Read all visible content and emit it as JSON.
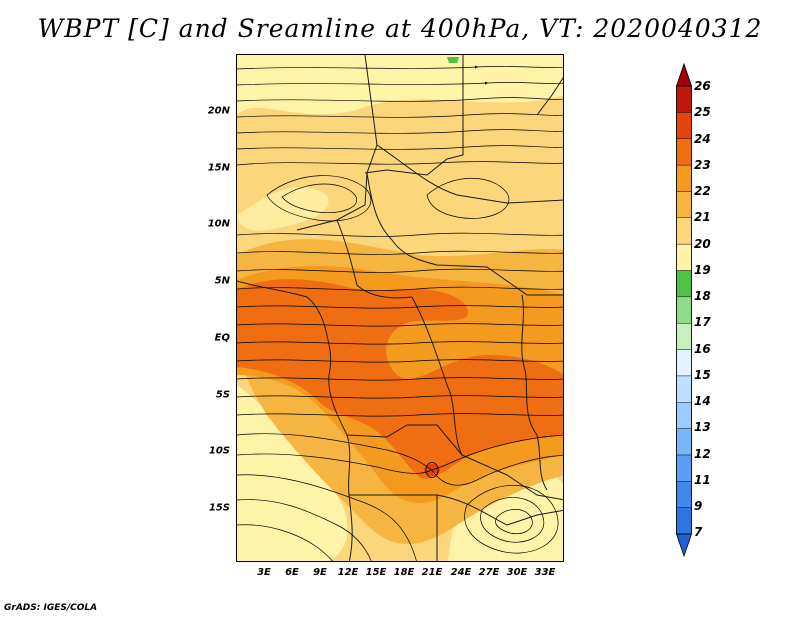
{
  "title": "WBPT [C] and Sreamline at 400hPa, VT: 2020040312",
  "footer": "GrADS: IGES/COLA",
  "map": {
    "variable": "wet-bulb potential temperature at 400hPa",
    "lon_range_deg": [
      0,
      35
    ],
    "lat_range_deg": [
      -20,
      24
    ]
  },
  "lat_labels": [
    "20N",
    "15N",
    "10N",
    "5N",
    "EQ",
    "5S",
    "10S",
    "15S"
  ],
  "lon_labels": [
    "3E",
    "6E",
    "9E",
    "12E",
    "15E",
    "18E",
    "21E",
    "24E",
    "27E",
    "30E",
    "33E"
  ],
  "colorbar": {
    "labels": [
      "7",
      "9",
      "11",
      "12",
      "13",
      "14",
      "15",
      "16",
      "17",
      "18",
      "19",
      "20",
      "21",
      "22",
      "23",
      "24",
      "25",
      "26"
    ],
    "colors": [
      "#1f63d6",
      "#2d74e6",
      "#3f88f0",
      "#5a9ff5",
      "#78b6fa",
      "#9bcbfc",
      "#bfe0fd",
      "#e4f3ff",
      "#c6f0c0",
      "#8fdc86",
      "#4fc144",
      "#fff3a8",
      "#fbd67a",
      "#f6b441",
      "#f49a1f",
      "#ef6e12",
      "#e2440e",
      "#c11708",
      "#a30000"
    ]
  }
}
